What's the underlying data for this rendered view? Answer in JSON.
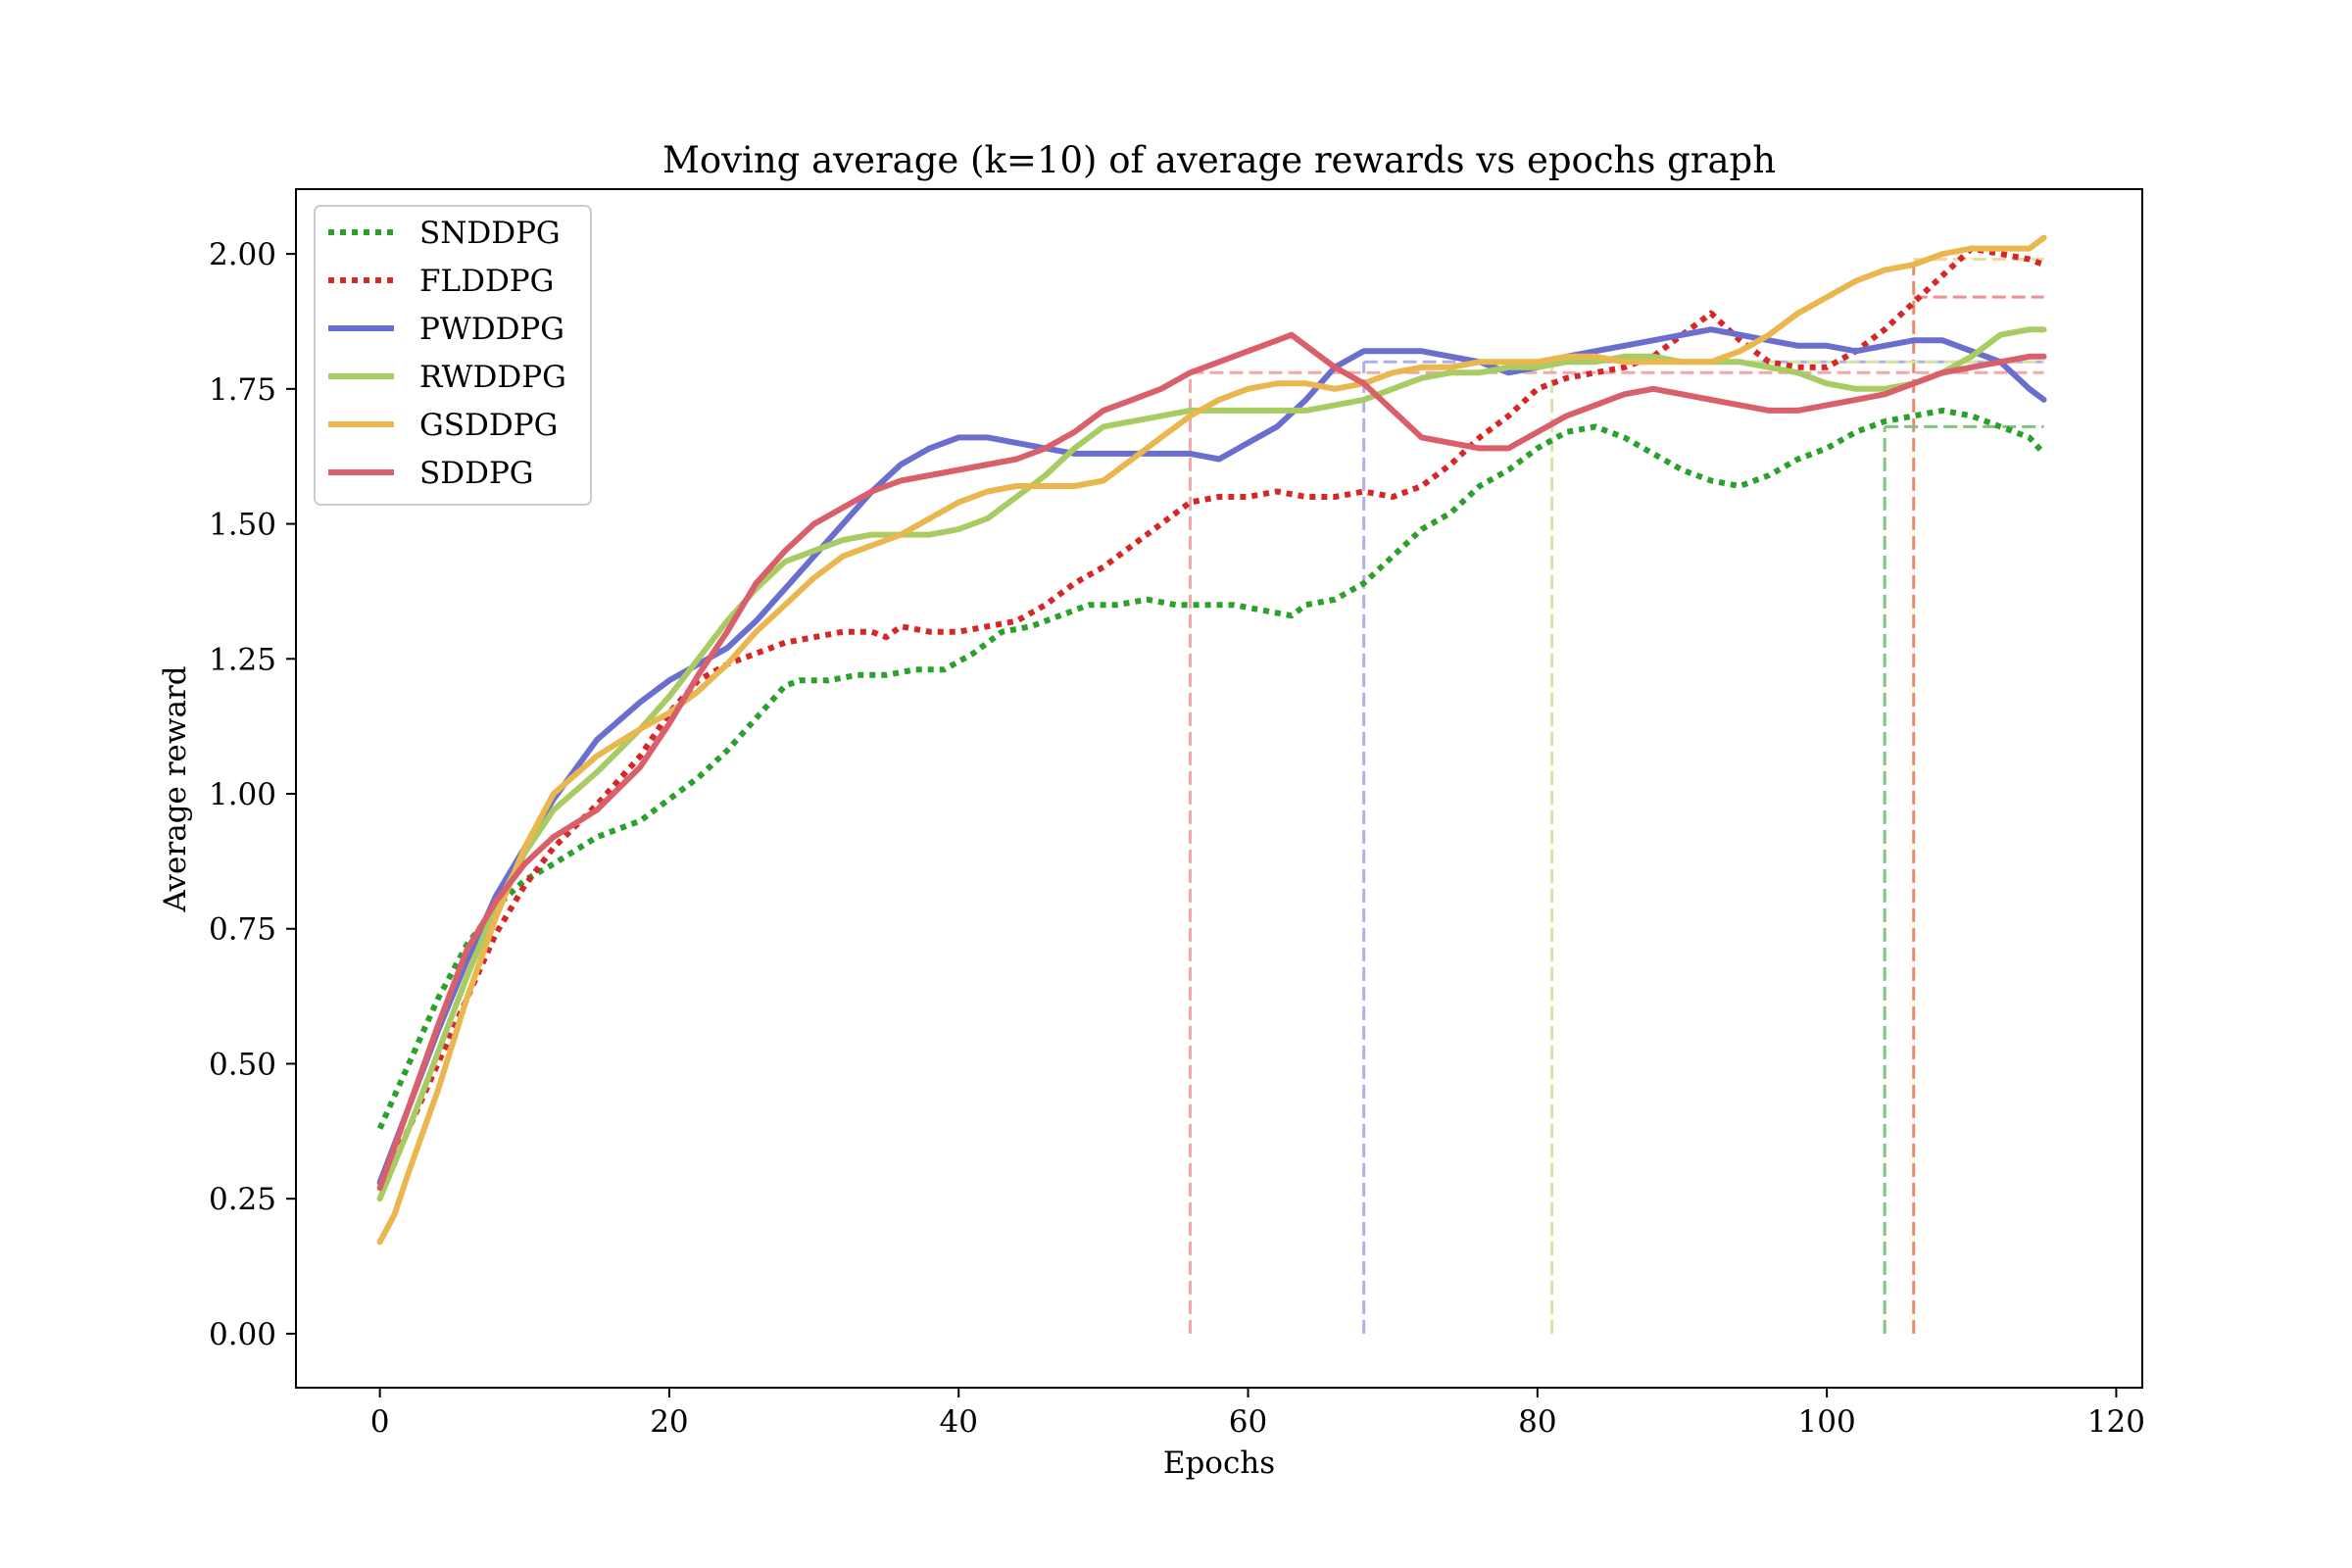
{
  "chart_data": {
    "type": "line",
    "title": "Moving average (k=10) of average rewards vs epochs graph",
    "xlabel": "Epochs",
    "ylabel": "Average reward",
    "xlim": [
      -5.8,
      121.8
    ],
    "ylim": [
      -0.1,
      2.12
    ],
    "xticks": [
      0,
      20,
      40,
      60,
      80,
      100,
      120
    ],
    "yticks": [
      0.0,
      0.25,
      0.5,
      0.75,
      1.0,
      1.25,
      1.5,
      1.75,
      2.0
    ],
    "xtick_labels": [
      "0",
      "20",
      "40",
      "60",
      "80",
      "100",
      "120"
    ],
    "ytick_labels": [
      "0.00",
      "0.25",
      "0.50",
      "0.75",
      "1.00",
      "1.25",
      "1.50",
      "1.75",
      "2.00"
    ],
    "grid": false,
    "legend_position": "top-left",
    "series": [
      {
        "name": "SNDDPG",
        "color": "#2ca02c",
        "style": "dotted",
        "x": [
          0,
          2,
          4,
          6,
          8,
          10,
          12,
          15,
          18,
          20,
          22,
          24,
          26,
          28,
          29,
          31,
          33,
          35,
          37,
          39,
          41,
          43,
          45,
          47,
          49,
          51,
          53,
          55,
          57,
          59,
          61,
          63,
          64,
          66,
          68,
          70,
          72,
          74,
          76,
          78,
          80,
          82,
          84,
          86,
          88,
          90,
          92,
          94,
          96,
          98,
          100,
          102,
          104,
          106,
          108,
          110,
          112,
          114,
          115
        ],
        "y": [
          0.38,
          0.5,
          0.62,
          0.72,
          0.79,
          0.84,
          0.87,
          0.92,
          0.95,
          0.99,
          1.03,
          1.08,
          1.14,
          1.2,
          1.21,
          1.21,
          1.22,
          1.22,
          1.23,
          1.23,
          1.26,
          1.3,
          1.31,
          1.33,
          1.35,
          1.35,
          1.36,
          1.35,
          1.35,
          1.35,
          1.34,
          1.33,
          1.35,
          1.36,
          1.39,
          1.44,
          1.49,
          1.52,
          1.57,
          1.6,
          1.64,
          1.67,
          1.68,
          1.66,
          1.63,
          1.6,
          1.58,
          1.57,
          1.59,
          1.62,
          1.64,
          1.67,
          1.69,
          1.7,
          1.71,
          1.7,
          1.68,
          1.66,
          1.63
        ]
      },
      {
        "name": "FLDDPG",
        "color": "#d62728",
        "style": "dotted",
        "x": [
          0,
          2,
          4,
          6,
          8,
          10,
          12,
          15,
          18,
          20,
          22,
          24,
          26,
          28,
          30,
          32,
          34,
          35,
          36,
          38,
          40,
          42,
          44,
          46,
          48,
          50,
          52,
          54,
          56,
          58,
          60,
          62,
          64,
          66,
          68,
          70,
          72,
          74,
          76,
          78,
          80,
          82,
          84,
          86,
          88,
          90,
          92,
          94,
          96,
          98,
          100,
          102,
          104,
          106,
          108,
          110,
          112,
          114,
          115
        ],
        "y": [
          0.27,
          0.38,
          0.5,
          0.62,
          0.74,
          0.83,
          0.9,
          0.98,
          1.07,
          1.15,
          1.21,
          1.24,
          1.26,
          1.28,
          1.29,
          1.3,
          1.3,
          1.29,
          1.31,
          1.3,
          1.3,
          1.31,
          1.32,
          1.35,
          1.39,
          1.42,
          1.46,
          1.5,
          1.54,
          1.55,
          1.55,
          1.56,
          1.55,
          1.55,
          1.56,
          1.55,
          1.57,
          1.61,
          1.66,
          1.7,
          1.75,
          1.77,
          1.78,
          1.79,
          1.81,
          1.85,
          1.89,
          1.84,
          1.8,
          1.79,
          1.79,
          1.82,
          1.86,
          1.91,
          1.96,
          2.01,
          2.0,
          1.99,
          1.98
        ]
      },
      {
        "name": "PWDDPG",
        "color": "#6a6fcf",
        "style": "solid",
        "x": [
          0,
          2,
          4,
          6,
          8,
          10,
          12,
          15,
          18,
          20,
          22,
          24,
          26,
          28,
          30,
          32,
          34,
          36,
          38,
          40,
          42,
          44,
          46,
          48,
          50,
          52,
          54,
          56,
          58,
          60,
          62,
          64,
          66,
          68,
          70,
          72,
          74,
          76,
          78,
          80,
          82,
          84,
          86,
          88,
          90,
          92,
          94,
          96,
          98,
          100,
          102,
          104,
          106,
          108,
          110,
          112,
          114,
          115
        ],
        "y": [
          0.28,
          0.42,
          0.56,
          0.69,
          0.81,
          0.9,
          0.99,
          1.1,
          1.17,
          1.21,
          1.24,
          1.27,
          1.32,
          1.38,
          1.44,
          1.5,
          1.56,
          1.61,
          1.64,
          1.66,
          1.66,
          1.65,
          1.64,
          1.63,
          1.63,
          1.63,
          1.63,
          1.63,
          1.62,
          1.65,
          1.68,
          1.73,
          1.79,
          1.82,
          1.82,
          1.82,
          1.81,
          1.8,
          1.78,
          1.79,
          1.81,
          1.82,
          1.83,
          1.84,
          1.85,
          1.86,
          1.85,
          1.84,
          1.83,
          1.83,
          1.82,
          1.83,
          1.84,
          1.84,
          1.82,
          1.8,
          1.75,
          1.73
        ]
      },
      {
        "name": "RWDDPG",
        "color": "#a8cc63",
        "style": "solid",
        "x": [
          0,
          2,
          4,
          6,
          8,
          10,
          12,
          15,
          18,
          20,
          22,
          24,
          26,
          28,
          30,
          32,
          34,
          36,
          38,
          40,
          42,
          44,
          46,
          48,
          50,
          52,
          54,
          56,
          58,
          60,
          62,
          64,
          66,
          68,
          70,
          72,
          74,
          76,
          78,
          80,
          82,
          84,
          86,
          88,
          90,
          92,
          94,
          96,
          98,
          100,
          102,
          104,
          106,
          108,
          110,
          112,
          114,
          115
        ],
        "y": [
          0.25,
          0.38,
          0.52,
          0.66,
          0.79,
          0.89,
          0.97,
          1.04,
          1.12,
          1.18,
          1.25,
          1.32,
          1.38,
          1.43,
          1.45,
          1.47,
          1.48,
          1.48,
          1.48,
          1.49,
          1.51,
          1.55,
          1.59,
          1.64,
          1.68,
          1.69,
          1.7,
          1.71,
          1.71,
          1.71,
          1.71,
          1.71,
          1.72,
          1.73,
          1.75,
          1.77,
          1.78,
          1.78,
          1.79,
          1.79,
          1.8,
          1.8,
          1.81,
          1.81,
          1.8,
          1.8,
          1.8,
          1.79,
          1.78,
          1.76,
          1.75,
          1.75,
          1.76,
          1.78,
          1.81,
          1.85,
          1.86,
          1.86
        ]
      },
      {
        "name": "GSDDPG",
        "color": "#e9b74e",
        "style": "solid",
        "x": [
          0,
          1,
          2,
          4,
          6,
          8,
          10,
          12,
          15,
          18,
          20,
          22,
          24,
          26,
          28,
          30,
          32,
          34,
          36,
          38,
          40,
          42,
          44,
          46,
          48,
          50,
          52,
          54,
          56,
          58,
          60,
          62,
          64,
          66,
          68,
          70,
          72,
          74,
          76,
          78,
          80,
          82,
          84,
          86,
          88,
          90,
          92,
          94,
          96,
          98,
          100,
          102,
          104,
          106,
          108,
          110,
          112,
          114,
          115
        ],
        "y": [
          0.17,
          0.22,
          0.3,
          0.45,
          0.62,
          0.77,
          0.9,
          1.0,
          1.07,
          1.12,
          1.15,
          1.19,
          1.24,
          1.3,
          1.35,
          1.4,
          1.44,
          1.46,
          1.48,
          1.51,
          1.54,
          1.56,
          1.57,
          1.57,
          1.57,
          1.58,
          1.62,
          1.66,
          1.7,
          1.73,
          1.75,
          1.76,
          1.76,
          1.75,
          1.76,
          1.78,
          1.79,
          1.79,
          1.8,
          1.8,
          1.8,
          1.81,
          1.81,
          1.8,
          1.8,
          1.8,
          1.8,
          1.82,
          1.85,
          1.89,
          1.92,
          1.95,
          1.97,
          1.98,
          2.0,
          2.01,
          2.01,
          2.01,
          2.03
        ]
      },
      {
        "name": "SDDPG",
        "color": "#d9606a",
        "style": "solid",
        "x": [
          0,
          2,
          4,
          6,
          8,
          10,
          12,
          15,
          18,
          20,
          22,
          24,
          26,
          28,
          30,
          32,
          34,
          36,
          38,
          40,
          42,
          44,
          46,
          48,
          50,
          52,
          54,
          56,
          58,
          60,
          62,
          63,
          64,
          66,
          68,
          70,
          72,
          74,
          76,
          78,
          80,
          82,
          84,
          86,
          88,
          90,
          92,
          94,
          96,
          98,
          100,
          102,
          104,
          106,
          108,
          110,
          112,
          114,
          115
        ],
        "y": [
          0.27,
          0.42,
          0.57,
          0.71,
          0.8,
          0.87,
          0.92,
          0.97,
          1.05,
          1.13,
          1.22,
          1.3,
          1.39,
          1.45,
          1.5,
          1.53,
          1.56,
          1.58,
          1.59,
          1.6,
          1.61,
          1.62,
          1.64,
          1.67,
          1.71,
          1.73,
          1.75,
          1.78,
          1.8,
          1.82,
          1.84,
          1.85,
          1.83,
          1.79,
          1.76,
          1.71,
          1.66,
          1.65,
          1.64,
          1.64,
          1.67,
          1.7,
          1.72,
          1.74,
          1.75,
          1.74,
          1.73,
          1.72,
          1.71,
          1.71,
          1.72,
          1.73,
          1.74,
          1.76,
          1.78,
          1.79,
          1.8,
          1.81,
          1.81
        ]
      }
    ],
    "vertical_markers": [
      {
        "x": 56,
        "y_top": 1.78,
        "color": "#f2a7a9"
      },
      {
        "x": 68,
        "y_top": 1.8,
        "color": "#aeb0e8"
      },
      {
        "x": 81,
        "y_top": 1.8,
        "color": "#d4e5a8"
      },
      {
        "x": 104,
        "y_top": 1.68,
        "color": "#7fc47f"
      },
      {
        "x": 106,
        "y_top": 1.99,
        "color": "#e8896a"
      }
    ],
    "horizontal_markers": [
      {
        "y": 1.78,
        "x_start": 56,
        "x_end": 115,
        "color": "#f2a7a9"
      },
      {
        "y": 1.8,
        "x_start": 68,
        "x_end": 115,
        "color": "#aeb0e8"
      },
      {
        "y": 1.8,
        "x_start": 81,
        "x_end": 115,
        "color": "#d4e5a8"
      },
      {
        "y": 1.68,
        "x_start": 104,
        "x_end": 115,
        "color": "#7fc47f"
      },
      {
        "y": 1.92,
        "x_start": 106,
        "x_end": 115,
        "color": "#ee8f93"
      },
      {
        "y": 1.99,
        "x_start": 106,
        "x_end": 115,
        "color": "#f2d79a"
      }
    ]
  }
}
